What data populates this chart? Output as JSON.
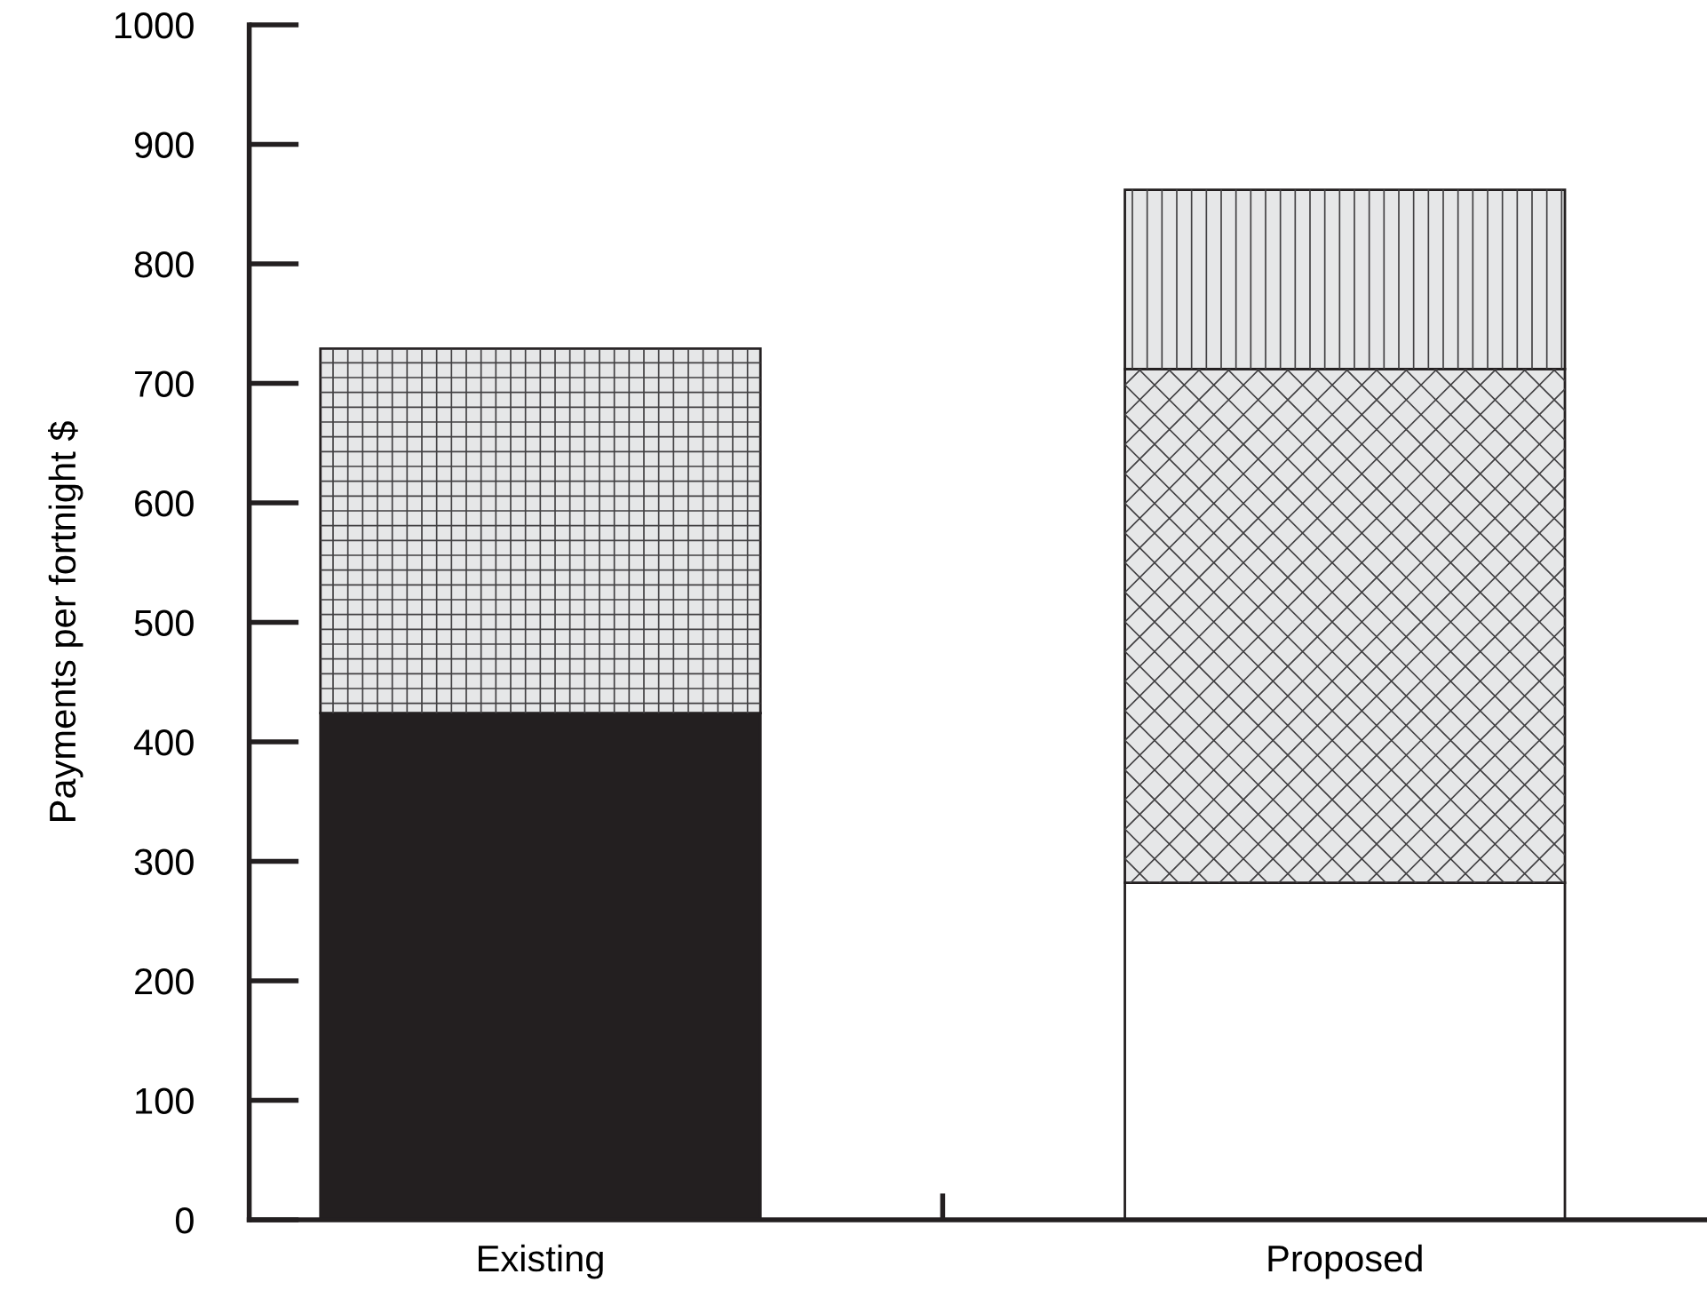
{
  "chart_data": {
    "type": "bar",
    "stacked": true,
    "ylabel": "Payments per fortnight $",
    "categories": [
      "Existing",
      "Proposed"
    ],
    "series": [
      {
        "color": "#231f20",
        "values": [
          424,
          null
        ]
      },
      {
        "color": "#e6e7e8",
        "values": [
          305,
          null
        ]
      },
      {
        "color": "#ffffff",
        "values": [
          null,
          282
        ]
      },
      {
        "color": "#e6e7e8",
        "values": [
          null,
          430
        ]
      },
      {
        "color": "#e6e7e8",
        "values": [
          null,
          150
        ]
      }
    ],
    "ylim": [
      0,
      1000
    ],
    "yticks": [
      0,
      100,
      200,
      300,
      400,
      500,
      600,
      700,
      800,
      900,
      1000
    ],
    "grid": false,
    "legend": false
  }
}
